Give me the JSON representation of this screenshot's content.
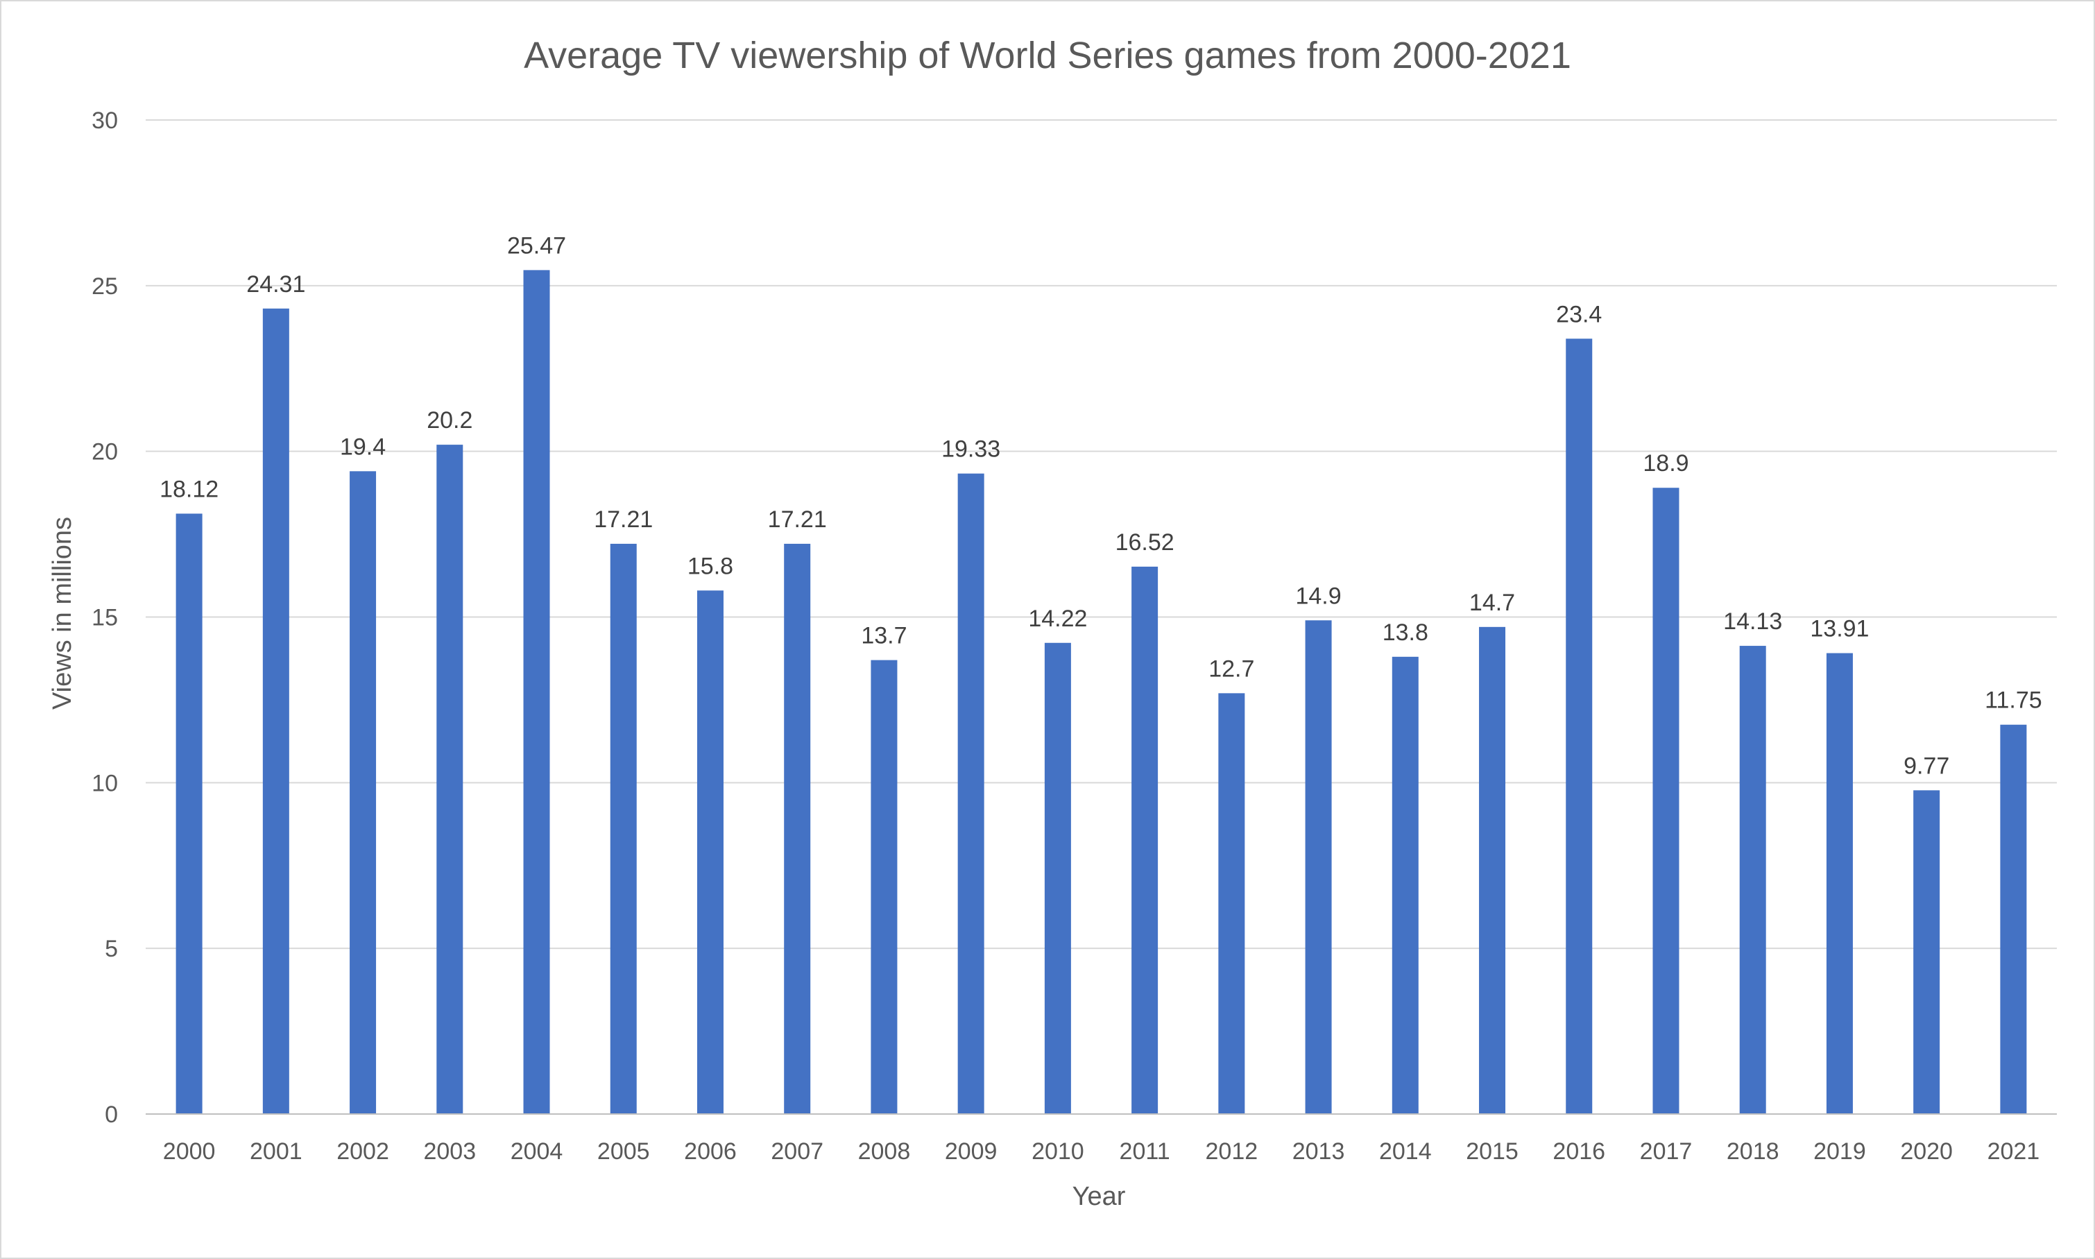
{
  "chart_data": {
    "type": "bar",
    "title": "Average TV viewership of World Series games from 2000-2021",
    "xlabel": "Year",
    "ylabel": "Views in millions",
    "categories": [
      "2000",
      "2001",
      "2002",
      "2003",
      "2004",
      "2005",
      "2006",
      "2007",
      "2008",
      "2009",
      "2010",
      "2011",
      "2012",
      "2013",
      "2014",
      "2015",
      "2016",
      "2017",
      "2018",
      "2019",
      "2020",
      "2021"
    ],
    "values": [
      18.12,
      24.31,
      19.4,
      20.2,
      25.47,
      17.21,
      15.8,
      17.21,
      13.7,
      19.33,
      14.22,
      16.52,
      12.7,
      14.9,
      13.8,
      14.7,
      23.4,
      18.9,
      14.13,
      13.91,
      9.77,
      11.75
    ],
    "data_labels": [
      "18.12",
      "24.31",
      "19.4",
      "20.2",
      "25.47",
      "17.21",
      "15.8",
      "17.21",
      "13.7",
      "19.33",
      "14.22",
      "16.52",
      "12.7",
      "14.9",
      "13.8",
      "14.7",
      "23.4",
      "18.9",
      "14.13",
      "13.91",
      "9.77",
      "11.75"
    ],
    "ylim": [
      0,
      30
    ],
    "yticks": [
      "0",
      "5",
      "10",
      "15",
      "20",
      "25",
      "30"
    ],
    "grid": true,
    "legend": "none",
    "bar_color": "#4472C4"
  }
}
